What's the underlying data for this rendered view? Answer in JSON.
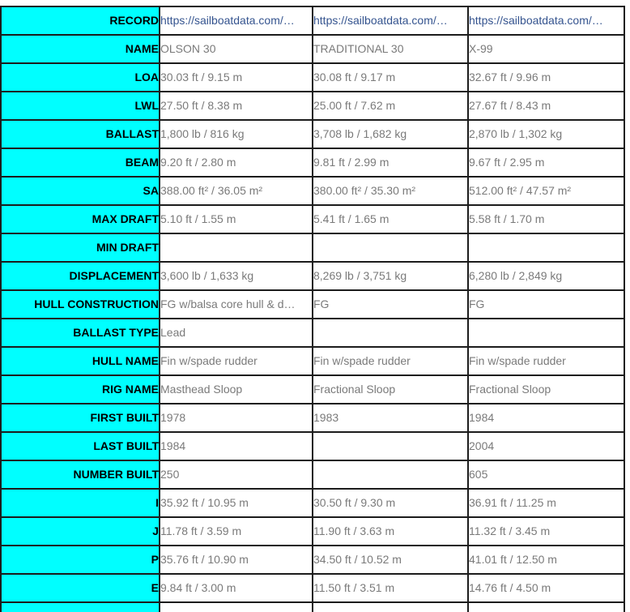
{
  "page": {
    "background_color": "#ffffff"
  },
  "table": {
    "style": {
      "header_column_color": "#00ffff",
      "border_color": "#1c1c1c",
      "label_text_color": "#000000",
      "value_text_color": "#7a7a7a",
      "link_color": "#35548f"
    },
    "rows": [
      {
        "label": "RECORD",
        "is_link": true,
        "values": [
          "https://sailboatdata.com/…",
          "https://sailboatdata.com/…",
          "https://sailboatdata.com/…"
        ]
      },
      {
        "label": "NAME",
        "is_link": false,
        "values": [
          "OLSON 30",
          "TRADITIONAL 30",
          "X-99"
        ]
      },
      {
        "label": "LOA",
        "is_link": false,
        "values": [
          "30.03 ft / 9.15 m",
          "30.08 ft / 9.17 m",
          "32.67 ft / 9.96 m"
        ]
      },
      {
        "label": "LWL",
        "is_link": false,
        "values": [
          "27.50 ft / 8.38 m",
          "25.00 ft / 7.62 m",
          "27.67 ft / 8.43 m"
        ]
      },
      {
        "label": "BALLAST",
        "is_link": false,
        "values": [
          "1,800 lb / 816 kg",
          "3,708 lb / 1,682 kg",
          "2,870 lb / 1,302 kg"
        ]
      },
      {
        "label": "BEAM",
        "is_link": false,
        "values": [
          "9.20 ft / 2.80 m",
          "9.81 ft / 2.99 m",
          "9.67 ft / 2.95 m"
        ]
      },
      {
        "label": "SA",
        "is_link": false,
        "values": [
          "388.00 ft² / 36.05 m²",
          "380.00 ft² / 35.30 m²",
          "512.00 ft² / 47.57 m²"
        ]
      },
      {
        "label": "MAX DRAFT",
        "is_link": false,
        "values": [
          "5.10 ft / 1.55 m",
          "5.41 ft / 1.65 m",
          "5.58 ft / 1.70 m"
        ]
      },
      {
        "label": "MIN DRAFT",
        "is_link": false,
        "values": [
          "",
          "",
          ""
        ]
      },
      {
        "label": "DISPLACEMENT",
        "is_link": false,
        "values": [
          "3,600 lb / 1,633 kg",
          "8,269 lb / 3,751 kg",
          "6,280 lb / 2,849 kg"
        ]
      },
      {
        "label": "HULL CONSTRUCTION",
        "is_link": false,
        "values": [
          "FG w/balsa core hull & d…",
          "FG",
          "FG"
        ]
      },
      {
        "label": "BALLAST TYPE",
        "is_link": false,
        "values": [
          "Lead",
          "",
          ""
        ]
      },
      {
        "label": "HULL NAME",
        "is_link": false,
        "values": [
          "Fin w/spade rudder",
          "Fin w/spade rudder",
          "Fin w/spade rudder"
        ]
      },
      {
        "label": "RIG NAME",
        "is_link": false,
        "values": [
          "Masthead Sloop",
          "Fractional Sloop",
          "Fractional Sloop"
        ]
      },
      {
        "label": "FIRST BUILT",
        "is_link": false,
        "values": [
          "1978",
          "1983",
          "1984"
        ]
      },
      {
        "label": "LAST BUILT",
        "is_link": false,
        "values": [
          "1984",
          "",
          "2004"
        ]
      },
      {
        "label": "NUMBER BUILT",
        "is_link": false,
        "values": [
          "250",
          "",
          "605"
        ]
      },
      {
        "label": "I",
        "is_link": false,
        "values": [
          "35.92 ft / 10.95 m",
          "30.50 ft / 9.30 m",
          "36.91 ft / 11.25 m"
        ]
      },
      {
        "label": "J",
        "is_link": false,
        "values": [
          "11.78 ft / 3.59 m",
          "11.90 ft / 3.63 m",
          "11.32 ft / 3.45 m"
        ]
      },
      {
        "label": "P",
        "is_link": false,
        "values": [
          "35.76 ft / 10.90 m",
          "34.50 ft / 10.52 m",
          "41.01 ft / 12.50 m"
        ]
      },
      {
        "label": "E",
        "is_link": false,
        "values": [
          "9.84 ft / 3.00 m",
          "11.50 ft / 3.51 m",
          "14.76 ft / 4.50 m"
        ]
      },
      {
        "label": "",
        "is_link": false,
        "values": [
          "",
          "",
          ""
        ]
      }
    ]
  }
}
